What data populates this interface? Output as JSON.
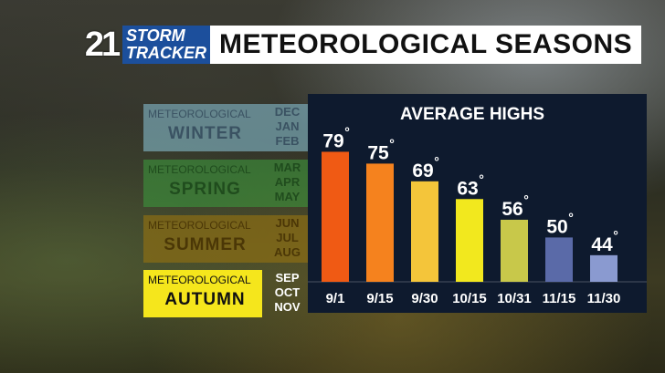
{
  "header": {
    "logo_number": "21",
    "logo_line1": "STORM",
    "logo_line2": "TRACKER",
    "title": "METEOROLOGICAL SEASONS"
  },
  "seasons": [
    {
      "prefix": "METEOROLOGICAL",
      "name": "WINTER",
      "months": [
        "DEC",
        "JAN",
        "FEB"
      ]
    },
    {
      "prefix": "METEOROLOGICAL",
      "name": "SPRING",
      "months": [
        "MAR",
        "APR",
        "MAY"
      ]
    },
    {
      "prefix": "METEOROLOGICAL",
      "name": "SUMMER",
      "months": [
        "JUN",
        "JUL",
        "AUG"
      ]
    },
    {
      "prefix": "METEOROLOGICAL",
      "name": "AUTUMN",
      "months": [
        "SEP",
        "OCT",
        "NOV"
      ]
    }
  ],
  "chart_data": {
    "type": "bar",
    "title": "AVERAGE HIGHS",
    "categories": [
      "9/1",
      "9/15",
      "9/30",
      "10/15",
      "10/31",
      "11/15",
      "11/30"
    ],
    "values": [
      79,
      75,
      69,
      63,
      56,
      50,
      44
    ],
    "value_suffix": "°",
    "colors": [
      "#f05a14",
      "#f5821e",
      "#f4c53a",
      "#f2e81e",
      "#c8c84a",
      "#5a6aa8",
      "#8a9ad0"
    ],
    "ylim": [
      35,
      85
    ],
    "grid": false
  }
}
